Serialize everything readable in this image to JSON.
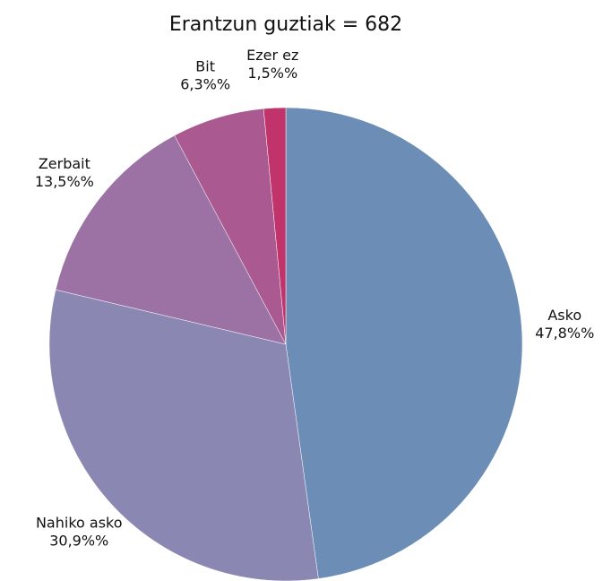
{
  "chart_data": {
    "type": "pie",
    "title": "Erantzun guztiak = 682",
    "categories": [
      "Asko",
      "Nahiko asko",
      "Zerbait",
      "Bit",
      "Ezer ez"
    ],
    "values": [
      47.8,
      30.9,
      13.5,
      6.3,
      1.5
    ],
    "value_labels": [
      "47,8%%",
      "30,9%%",
      "13,5%%",
      "6,3%%",
      "1,5%%"
    ],
    "colors": [
      "#6b8db6",
      "#8b87b3",
      "#9c72a5",
      "#aa5a91",
      "#c0336b"
    ]
  }
}
